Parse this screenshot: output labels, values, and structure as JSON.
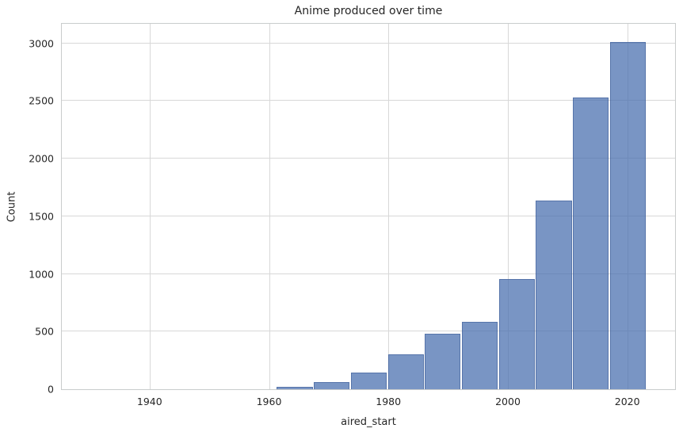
{
  "figure": {
    "background": "#ffffff"
  },
  "chart_data": {
    "type": "bar",
    "subtype": "histogram",
    "title": "Anime produced over time",
    "xlabel": "aired_start",
    "ylabel": "Count",
    "grid": true,
    "legend": false,
    "x_tick_labels": [
      "1940",
      "1960",
      "1980",
      "2000",
      "2020"
    ],
    "x_tick_values": [
      1940,
      1960,
      1980,
      2000,
      2020
    ],
    "y_tick_labels": [
      "0",
      "500",
      "1000",
      "1500",
      "2000",
      "2500",
      "3000"
    ],
    "y_tick_values": [
      0,
      500,
      1000,
      1500,
      2000,
      2500,
      3000
    ],
    "xlim": [
      1925.3,
      2028.0
    ],
    "ylim": [
      0,
      3170
    ],
    "bins": {
      "start": 1961.3,
      "width": 6.2,
      "count": 10
    },
    "bin_edges": [
      1961.3,
      1967.5,
      1973.7,
      1979.9,
      1986.1,
      1992.3,
      1998.5,
      2004.7,
      2010.9,
      2017.1,
      2023.3
    ],
    "values": [
      20,
      60,
      145,
      300,
      480,
      585,
      955,
      1640,
      2530,
      3010
    ],
    "colors": {
      "bar_fill": "#4c72b0",
      "bar_fill_alpha": 0.75,
      "bar_edge": "#35558f",
      "gridline": "#d8d8d8",
      "spine": "#c9cccc",
      "text": "#262626"
    }
  }
}
